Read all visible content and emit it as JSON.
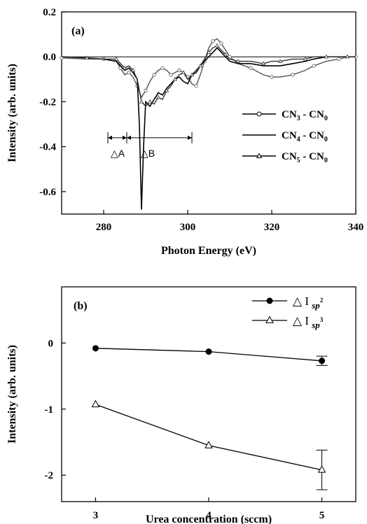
{
  "chart_data": [
    {
      "type": "line",
      "panel_label": "(a)",
      "xlabel": "Photon Energy (eV)",
      "ylabel": "Intensity (arb. units)",
      "xlim": [
        270,
        340
      ],
      "ylim": [
        -0.7,
        0.2
      ],
      "xticks": [
        280,
        300,
        320,
        340
      ],
      "yticks": [
        0.2,
        0.0,
        -0.2,
        -0.4,
        -0.6
      ],
      "ytick_labels": [
        "0.2",
        "0.0",
        "-0.2",
        "-0.4",
        "-0.6"
      ],
      "legend_position": "right",
      "series": [
        {
          "name": "CN3 - CN0",
          "legend_main": "CN",
          "legend_sub": "3",
          "legend_rest": " - CN",
          "legend_sub2": "0",
          "marker": "circle",
          "x": [
            270,
            276,
            280,
            283,
            284,
            285,
            286,
            287,
            288,
            289,
            290,
            291,
            292,
            293,
            294,
            295,
            296,
            297,
            298,
            299,
            300,
            301,
            302,
            303,
            304,
            305,
            306,
            307,
            308,
            309,
            310,
            312,
            315,
            318,
            320,
            322,
            325,
            328,
            330,
            333,
            336,
            338,
            340
          ],
          "y": [
            -0.005,
            -0.01,
            -0.01,
            -0.02,
            -0.05,
            -0.08,
            -0.07,
            -0.09,
            -0.13,
            -0.18,
            -0.15,
            -0.11,
            -0.08,
            -0.06,
            -0.05,
            -0.06,
            -0.08,
            -0.07,
            -0.06,
            -0.07,
            -0.09,
            -0.12,
            -0.13,
            -0.08,
            -0.02,
            0.04,
            0.07,
            0.08,
            0.06,
            0.03,
            0.0,
            -0.03,
            -0.05,
            -0.08,
            -0.09,
            -0.09,
            -0.08,
            -0.06,
            -0.04,
            -0.02,
            -0.01,
            0.0,
            0.0
          ]
        },
        {
          "name": "CN4 - CN0",
          "legend_main": "CN",
          "legend_sub": "4",
          "legend_rest": " - CN",
          "legend_sub2": "0",
          "marker": "none",
          "x": [
            270,
            276,
            280,
            283,
            284,
            285,
            286,
            287,
            288,
            288.5,
            289,
            289.5,
            290,
            291,
            292,
            293,
            294,
            295,
            296,
            297,
            298,
            299,
            300,
            301,
            302,
            303,
            304,
            305,
            306,
            307,
            308,
            309,
            310,
            312,
            315,
            318,
            320,
            322,
            325,
            328,
            330,
            333,
            336,
            338,
            340
          ],
          "y": [
            0.0,
            -0.005,
            -0.01,
            -0.02,
            -0.04,
            -0.06,
            -0.05,
            -0.07,
            -0.1,
            -0.3,
            -0.68,
            -0.4,
            -0.2,
            -0.22,
            -0.19,
            -0.16,
            -0.17,
            -0.14,
            -0.12,
            -0.1,
            -0.09,
            -0.11,
            -0.12,
            -0.08,
            -0.07,
            -0.04,
            -0.02,
            0.0,
            0.02,
            0.04,
            0.02,
            0.0,
            -0.02,
            -0.03,
            -0.03,
            -0.04,
            -0.04,
            -0.04,
            -0.03,
            -0.02,
            -0.01,
            0.0,
            0.0,
            0.0,
            0.0
          ]
        },
        {
          "name": "CN5 - CN0",
          "legend_main": "CN",
          "legend_sub": "5",
          "legend_rest": " - CN",
          "legend_sub2": "0",
          "marker": "triangle",
          "x": [
            270,
            276,
            280,
            283,
            284,
            285,
            286,
            287,
            288,
            289,
            290,
            291,
            292,
            293,
            294,
            295,
            296,
            297,
            298,
            299,
            300,
            301,
            302,
            303,
            304,
            305,
            306,
            307,
            308,
            309,
            310,
            312,
            315,
            318,
            320,
            322,
            325,
            328,
            330,
            333,
            336,
            338,
            340
          ],
          "y": [
            0.0,
            -0.005,
            -0.01,
            -0.01,
            -0.03,
            -0.05,
            -0.04,
            -0.06,
            -0.1,
            -0.2,
            -0.22,
            -0.2,
            -0.21,
            -0.18,
            -0.19,
            -0.15,
            -0.13,
            -0.1,
            -0.08,
            -0.07,
            -0.1,
            -0.08,
            -0.06,
            -0.04,
            -0.01,
            0.02,
            0.04,
            0.05,
            0.03,
            0.01,
            -0.01,
            -0.02,
            -0.02,
            -0.03,
            -0.02,
            -0.02,
            -0.01,
            -0.01,
            0.0,
            0.0,
            0.0,
            0.0,
            0.0
          ]
        }
      ],
      "annotations": [
        {
          "label": "△A",
          "from": 281,
          "to": 285.5,
          "y": -0.36
        },
        {
          "label": "△B",
          "from": 285.5,
          "to": 301,
          "y": -0.36
        }
      ]
    },
    {
      "type": "line",
      "panel_label": "(b)",
      "xlabel": "Urea concentration (sccm)",
      "ylabel": "Intensity (arb. units)",
      "xlim": [
        2.7,
        5.3
      ],
      "ylim": [
        -2.4,
        0.85
      ],
      "xticks": [
        3,
        4,
        5
      ],
      "yticks": [
        0,
        -1,
        -2
      ],
      "legend_position": "top-right",
      "categories": [
        3,
        4,
        5
      ],
      "series": [
        {
          "name": "ΔI sp2",
          "legend_main": "△ I ",
          "legend_sub": "sp",
          "legend_sup": "2",
          "marker": "filled-circle",
          "values": [
            -0.08,
            -0.13,
            -0.27
          ],
          "errors": [
            0,
            0,
            0.07
          ]
        },
        {
          "name": "ΔI sp3",
          "legend_main": "△ I ",
          "legend_sub": "sp",
          "legend_sup": "3",
          "marker": "open-triangle",
          "values": [
            -0.93,
            -1.55,
            -1.92
          ],
          "errors": [
            0,
            0,
            0.3
          ]
        }
      ]
    }
  ]
}
